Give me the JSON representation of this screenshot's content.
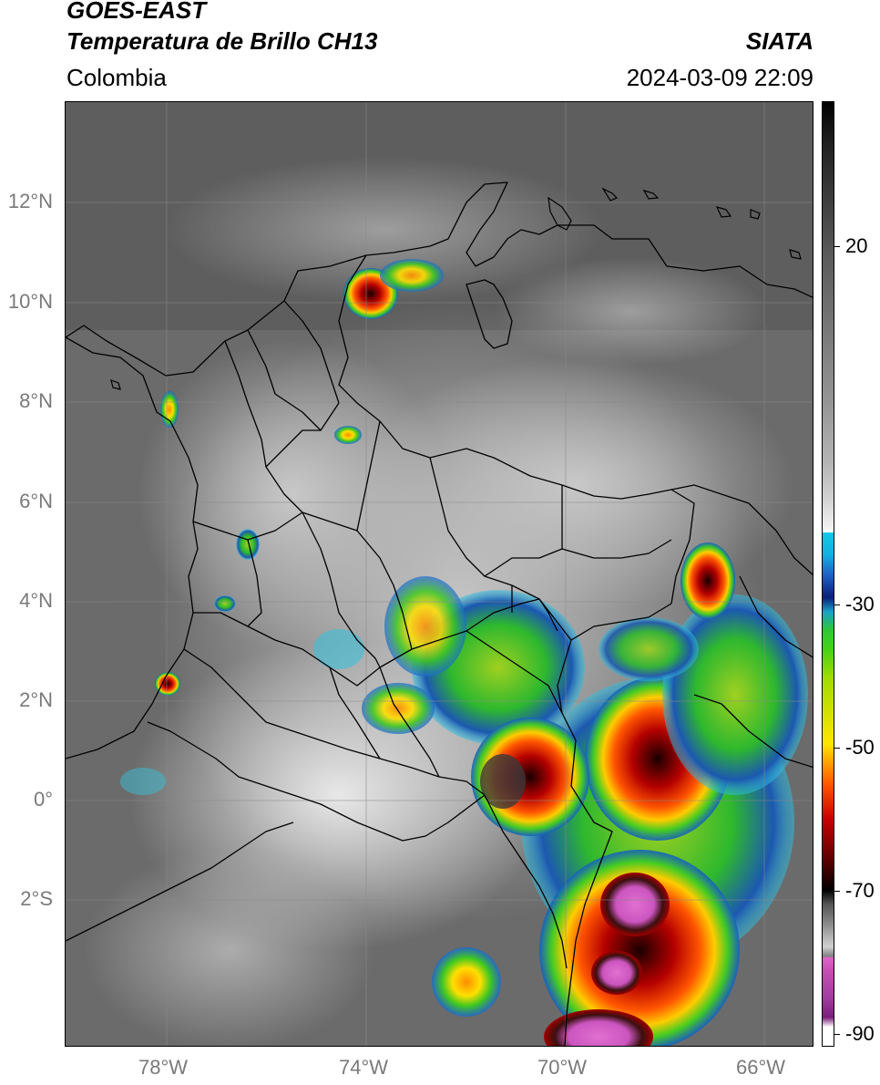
{
  "header": {
    "satellite": "GOES-EAST",
    "product": "Temperatura de Brillo CH13",
    "region": "Colombia",
    "agency": "SIATA",
    "timestamp": "2024-03-09 22:09"
  },
  "map": {
    "lat_labels": [
      "12°N",
      "10°N",
      "8°N",
      "6°N",
      "4°N",
      "2°N",
      "0°",
      "2°S"
    ],
    "lon_labels": [
      "78°W",
      "74°W",
      "70°W",
      "66°W"
    ]
  },
  "colorbar": {
    "tick_labels": [
      "20",
      "-30",
      "-50",
      "-70",
      "-90"
    ]
  }
}
